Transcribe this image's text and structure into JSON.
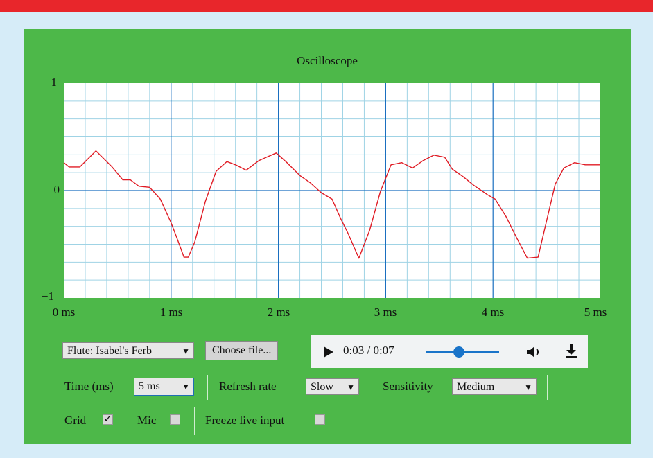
{
  "colors": {
    "header_bar": "#e8262b",
    "background": "#d6ecf8",
    "panel": "#4db849",
    "trace": "#e01b24",
    "major_grid": "#1a6fc0",
    "minor_grid": "#9fd3e5"
  },
  "scope": {
    "title": "Oscilloscope",
    "y_labels": [
      "1",
      "0",
      "−1"
    ],
    "x_labels": [
      "0 ms",
      "1 ms",
      "2 ms",
      "3 ms",
      "4 ms",
      "5 ms"
    ]
  },
  "chart_data": {
    "type": "line",
    "title": "Oscilloscope",
    "x_unit": "ms",
    "xlim": [
      0,
      5
    ],
    "ylim": [
      -1,
      1
    ],
    "xticks": [
      "0 ms",
      "1 ms",
      "2 ms",
      "3 ms",
      "4 ms",
      "5 ms"
    ],
    "yticks": [
      "1",
      "0",
      "−1"
    ],
    "grid": true,
    "series": [
      {
        "x": [
          0,
          0.05,
          0.15,
          0.3,
          0.45,
          0.55,
          0.62,
          0.7,
          0.8,
          0.9,
          1.0,
          1.05,
          1.12,
          1.16,
          1.22,
          1.32,
          1.42,
          1.52,
          1.6,
          1.7,
          1.82,
          1.98,
          2.08,
          2.2,
          2.3,
          2.4,
          2.5,
          2.58,
          2.65,
          2.75,
          2.85,
          2.95,
          3.05,
          3.15,
          3.25,
          3.35,
          3.45,
          3.55,
          3.62,
          3.72,
          3.82,
          3.95,
          4.02,
          4.12,
          4.22,
          4.32,
          4.42,
          4.5,
          4.58,
          4.66,
          4.76,
          4.86,
          4.92,
          5.0
        ],
        "y": [
          0.26,
          0.22,
          0.22,
          0.37,
          0.22,
          0.1,
          0.1,
          0.04,
          0.03,
          -0.08,
          -0.3,
          -0.43,
          -0.62,
          -0.62,
          -0.48,
          -0.1,
          0.18,
          0.27,
          0.24,
          0.19,
          0.28,
          0.35,
          0.26,
          0.14,
          0.07,
          -0.02,
          -0.08,
          -0.26,
          -0.4,
          -0.63,
          -0.37,
          -0.01,
          0.24,
          0.26,
          0.21,
          0.28,
          0.33,
          0.31,
          0.2,
          0.13,
          0.05,
          -0.04,
          -0.08,
          -0.24,
          -0.44,
          -0.63,
          -0.62,
          -0.28,
          0.06,
          0.21,
          0.26,
          0.24,
          0.24,
          0.24
        ]
      }
    ]
  },
  "controls": {
    "source_select": "Flute: Isabel's Ferb",
    "choose_file": "Choose file...",
    "player": {
      "time": "0:03 / 0:07",
      "progress": 0.45
    },
    "time_label": "Time (ms)",
    "time_value": "5 ms",
    "refresh_label": "Refresh rate",
    "refresh_value": "Slow",
    "sensitivity_label": "Sensitivity",
    "sensitivity_value": "Medium",
    "grid_label": "Grid",
    "grid_checked": true,
    "mic_label": "Mic",
    "mic_checked": false,
    "freeze_label": "Freeze live input",
    "freeze_checked": false
  }
}
